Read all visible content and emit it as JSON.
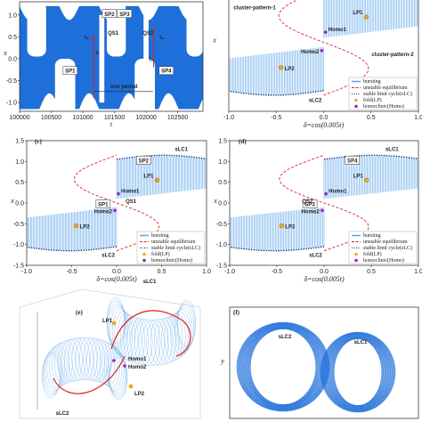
{
  "chart_data": [
    {
      "type": "line",
      "panel": "a",
      "xlabel": "t",
      "ylabel": "x",
      "xticks": [
        "100000",
        "100500",
        "101000",
        "101500",
        "102000",
        "102500"
      ],
      "yticks": [
        "-1.0",
        "-0.5",
        "0.0",
        "0.5",
        "1.0"
      ],
      "xlim": [
        100000,
        102900
      ],
      "ylim": [
        -1.2,
        1.3
      ],
      "annotations": {
        "sp1": "SP1",
        "sp2": "SP2",
        "sp3": "SP3",
        "sp4": "SP4",
        "qs1": "QS1",
        "qs2": "QS2",
        "t0": "t₀",
        "t1": "t₁",
        "t2": "t₂",
        "t3": "t₃",
        "period": "one period"
      }
    },
    {
      "type": "line",
      "panel": "b",
      "xlabel": "δ=cos(0.005t)",
      "ylabel": "x",
      "xticks": [
        "-1.0",
        "-0.5",
        "0.0",
        "0.5",
        "1.0"
      ],
      "xlim": [
        -1,
        1
      ],
      "ylim": [
        -1.5,
        1.5
      ],
      "annotations": {
        "lp1": "LP1",
        "lp2": "LP2",
        "homo1": "Homo1",
        "homo2": "Homo2",
        "slc2": "sLC2",
        "cp1": "cluster-pattern-1",
        "cp2": "cluster-pattern-2"
      },
      "legend": [
        "bursting",
        "unstable equilibrium",
        "stable limit cycle(sLC)",
        "fold(LP)",
        "homoclinic(Homo)"
      ]
    },
    {
      "type": "line",
      "panel": "c",
      "xlabel": "δ=cos(0.005t)",
      "ylabel": "x",
      "xticks": [
        "-1.0",
        "-0.5",
        "0.0",
        "0.5",
        "1.0"
      ],
      "yticks": [
        "-1.5",
        "-1.0",
        "-0.5",
        "0.0",
        "0.5",
        "1.0",
        "1.5"
      ],
      "xlim": [
        -1,
        1
      ],
      "ylim": [
        -1.5,
        1.5
      ],
      "annotations": {
        "lp1": "LP1",
        "lp2": "LP2",
        "homo1": "Homo1",
        "homo2": "Homo2",
        "slc1": "sLC1",
        "slc2": "sLC2",
        "sp1": "SP1",
        "sp2": "SP2",
        "qs": "QS1"
      },
      "legend": [
        "bursting",
        "unstable equilibrium",
        "stable limit cycle(sLC)",
        "fold(LP)",
        "homoclinic(Homo)"
      ]
    },
    {
      "type": "line",
      "panel": "d",
      "xlabel": "δ=cos(0.005t)",
      "ylabel": "x",
      "xticks": [
        "-1.0",
        "-0.5",
        "0.0",
        "0.5",
        "1.0"
      ],
      "yticks": [
        "-1.5",
        "-1.0",
        "-0.5",
        "0.0",
        "0.5",
        "1.0",
        "1.5"
      ],
      "xlim": [
        -1,
        1
      ],
      "ylim": [
        -1.5,
        1.5
      ],
      "annotations": {
        "lp1": "LP1",
        "lp2": "LP2",
        "homo1": "Homo1",
        "homo2": "Homo2",
        "slc1": "sLC1",
        "slc2": "sLC2",
        "sp1": "SP3",
        "sp2": "SP4",
        "qs": "QS2"
      },
      "legend": [
        "bursting",
        "unstable equilibrium",
        "stable limit cycle(sLC)",
        "fold(LP)",
        "homoclinic(Homo)"
      ]
    },
    {
      "type": "scatter",
      "panel": "e",
      "annotations": {
        "lp1": "LP1",
        "lp2": "LP2",
        "homo1": "Homo1",
        "homo2": "Homo2",
        "slc1": "sLC1",
        "slc2": "sLC2"
      }
    },
    {
      "type": "line",
      "panel": "f",
      "ylabel": "y",
      "annotations": {
        "slc1": "sLC1",
        "slc2": "sLC2"
      }
    }
  ],
  "colors": {
    "bursting": "#1e6fd9",
    "burstLight": "#5aa3ea",
    "unstable": "#e02020",
    "slc": "#0a2a5a",
    "lp": "#f5a623",
    "homo": "#a020c0"
  },
  "panel_labels": {
    "e": "(e)",
    "f": "(f)",
    "c": "(c)",
    "d": "(d)"
  }
}
